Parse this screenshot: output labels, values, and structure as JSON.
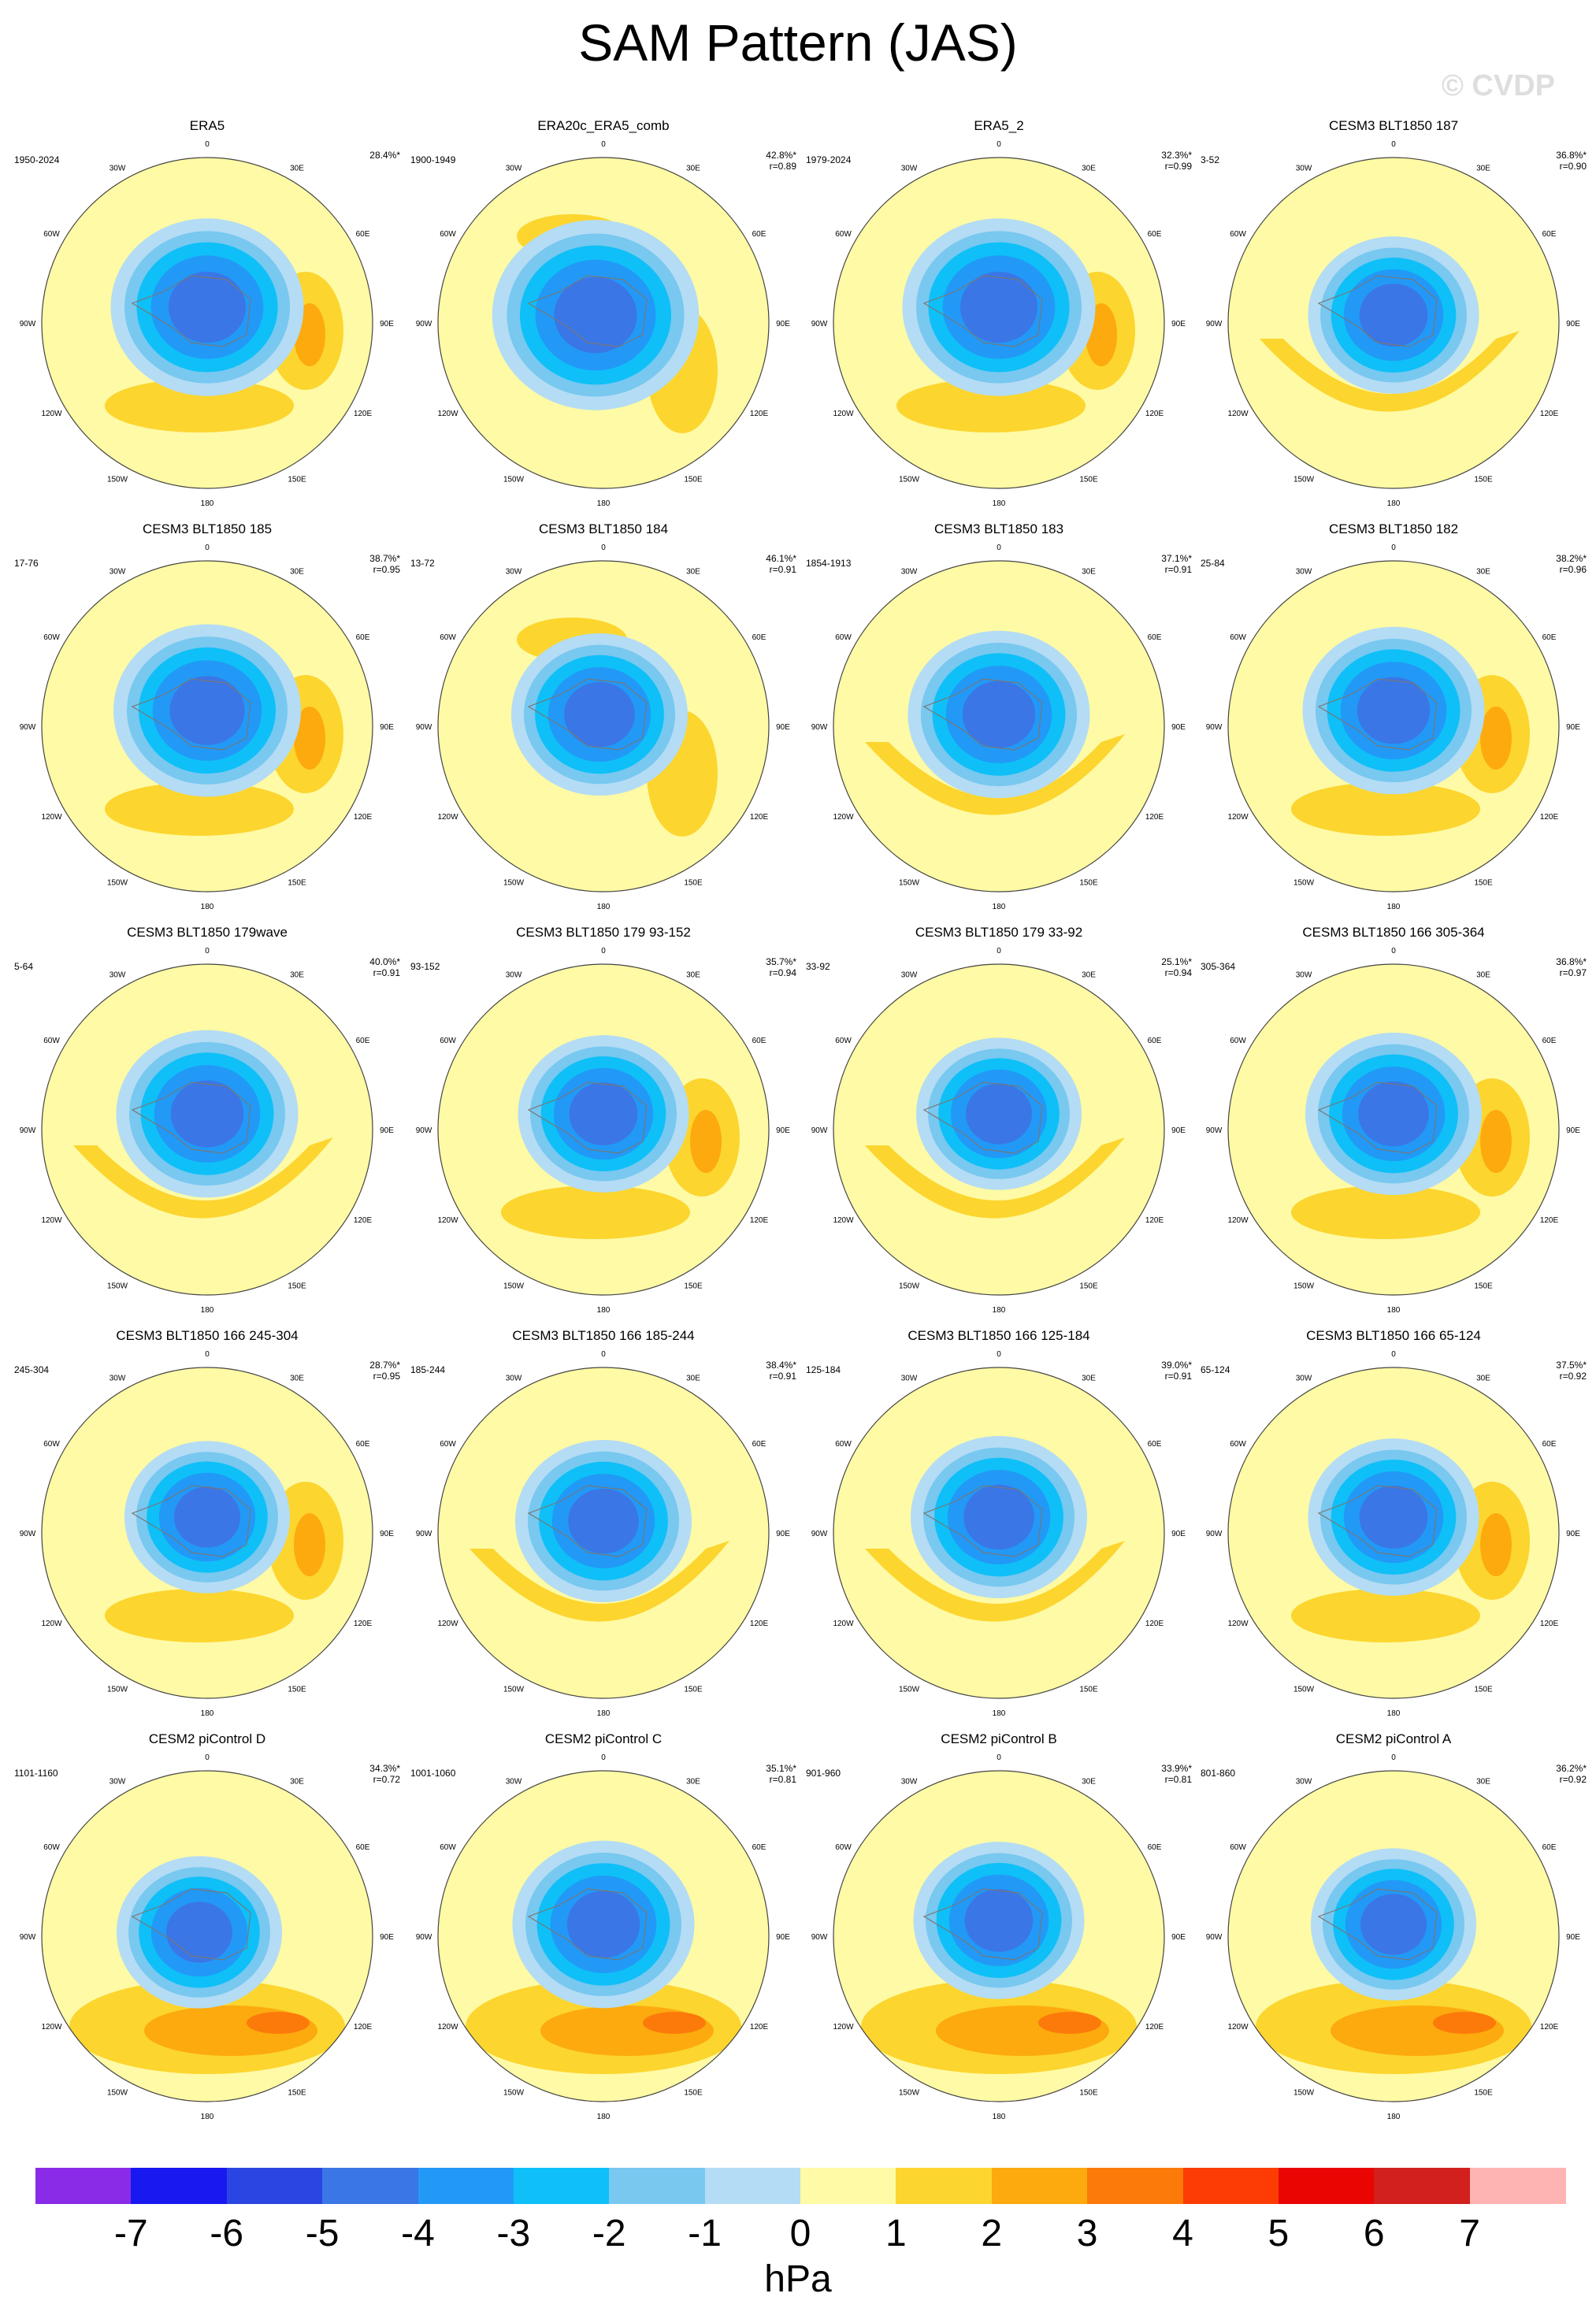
{
  "title": "SAM Pattern (JAS)",
  "watermark": "© CVDP",
  "lon_labels": [
    "0",
    "30E",
    "60E",
    "90E",
    "120E",
    "150E",
    "180",
    "150W",
    "120W",
    "90W",
    "60W",
    "30W"
  ],
  "panels": [
    {
      "name": "ERA5",
      "period": "1950-2024",
      "pct": "28.4%*",
      "r": ""
    },
    {
      "name": "ERA20c_ERA5_comb",
      "period": "1900-1949",
      "pct": "42.8%*",
      "r": "r=0.89"
    },
    {
      "name": "ERA5_2",
      "period": "1979-2024",
      "pct": "32.3%*",
      "r": "r=0.99"
    },
    {
      "name": "CESM3 BLT1850 187",
      "period": "3-52",
      "pct": "36.8%*",
      "r": "r=0.90"
    },
    {
      "name": "CESM3 BLT1850 185",
      "period": "17-76",
      "pct": "38.7%*",
      "r": "r=0.95"
    },
    {
      "name": "CESM3 BLT1850 184",
      "period": "13-72",
      "pct": "46.1%*",
      "r": "r=0.91"
    },
    {
      "name": "CESM3 BLT1850 183",
      "period": "1854-1913",
      "pct": "37.1%*",
      "r": "r=0.91"
    },
    {
      "name": "CESM3 BLT1850 182",
      "period": "25-84",
      "pct": "38.2%*",
      "r": "r=0.96"
    },
    {
      "name": "CESM3 BLT1850 179wave",
      "period": "5-64",
      "pct": "40.0%*",
      "r": "r=0.91"
    },
    {
      "name": "CESM3 BLT1850 179 93-152",
      "period": "93-152",
      "pct": "35.7%*",
      "r": "r=0.94"
    },
    {
      "name": "CESM3 BLT1850 179 33-92",
      "period": "33-92",
      "pct": "25.1%*",
      "r": "r=0.94"
    },
    {
      "name": "CESM3 BLT1850 166 305-364",
      "period": "305-364",
      "pct": "36.8%*",
      "r": "r=0.97"
    },
    {
      "name": "CESM3 BLT1850 166 245-304",
      "period": "245-304",
      "pct": "28.7%*",
      "r": "r=0.95"
    },
    {
      "name": "CESM3 BLT1850 166 185-244",
      "period": "185-244",
      "pct": "38.4%*",
      "r": "r=0.91"
    },
    {
      "name": "CESM3 BLT1850 166 125-184",
      "period": "125-184",
      "pct": "39.0%*",
      "r": "r=0.91"
    },
    {
      "name": "CESM3 BLT1850 166 65-124",
      "period": "65-124",
      "pct": "37.5%*",
      "r": "r=0.92"
    },
    {
      "name": "CESM2 piControl D",
      "period": "1101-1160",
      "pct": "34.3%*",
      "r": "r=0.72"
    },
    {
      "name": "CESM2 piControl C",
      "period": "1001-1060",
      "pct": "35.1%*",
      "r": "r=0.81"
    },
    {
      "name": "CESM2 piControl B",
      "period": "901-960",
      "pct": "33.9%*",
      "r": "r=0.81"
    },
    {
      "name": "CESM2 piControl A",
      "period": "801-860",
      "pct": "36.2%*",
      "r": "r=0.92"
    }
  ],
  "colorbar": {
    "unit": "hPa",
    "ticks": [
      "-7",
      "-6",
      "-5",
      "-4",
      "-3",
      "-2",
      "-1",
      "0",
      "1",
      "2",
      "3",
      "4",
      "5",
      "6",
      "7"
    ],
    "colors": [
      "#8a2be8",
      "#1a18f0",
      "#2b45e2",
      "#3a76e6",
      "#2299f7",
      "#0ec0f7",
      "#78c8f0",
      "#b4dcf4",
      "#fffaa5",
      "#fcd52e",
      "#fcaa0e",
      "#fc7a0a",
      "#fc3c04",
      "#ea0502",
      "#d2201e",
      "#ffb4b4"
    ]
  }
}
